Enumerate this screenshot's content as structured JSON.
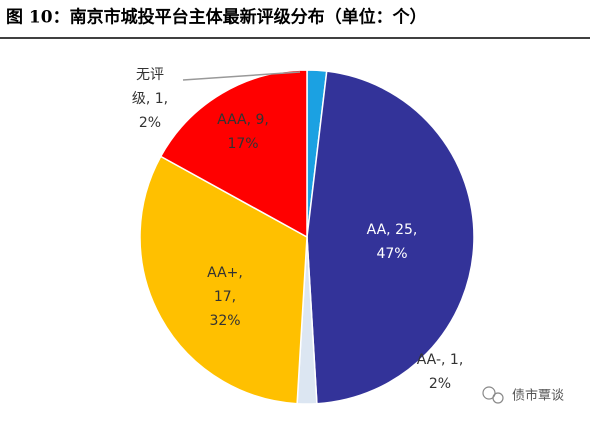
{
  "chart_data": {
    "type": "pie",
    "title": "图 10：南京市城投平台主体最新评级分布（单位：个）",
    "categories": [
      "无评级",
      "AA",
      "AA-",
      "AA+",
      "AAA"
    ],
    "values": [
      1,
      25,
      1,
      17,
      9
    ],
    "colors": [
      "#1ba1e2",
      "#333399",
      "#dce6f2",
      "#ffc000",
      "#ff0000"
    ],
    "data_labels": [
      [
        "无评",
        "级, 1,",
        "2%"
      ],
      [
        "AA, 25,",
        "47%"
      ],
      [
        "AA-, 1,",
        "2%"
      ],
      [
        "AA+,",
        "17,",
        "32%"
      ],
      [
        "AAA, 9,",
        "17%"
      ]
    ],
    "watermark": "债市覃谈"
  }
}
